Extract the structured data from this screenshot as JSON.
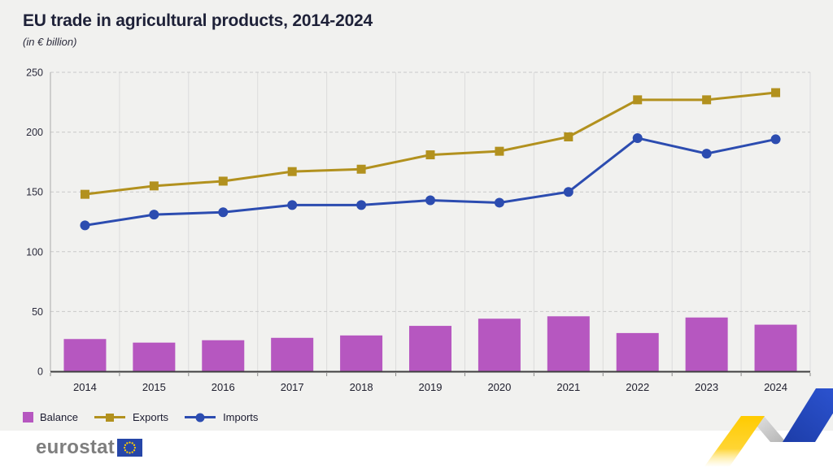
{
  "header": {
    "title": "EU trade in agricultural products, 2014-2024",
    "subtitle": "(in € billion)"
  },
  "legend": {
    "items": [
      {
        "label": "Balance",
        "swatch": "bar-square",
        "color": "#b657c0"
      },
      {
        "label": "Exports",
        "swatch": "line-square",
        "color": "#b2911e"
      },
      {
        "label": "Imports",
        "swatch": "line-circle",
        "color": "#2c4cb0"
      }
    ]
  },
  "footer": {
    "logo_text": "eurostat"
  },
  "colors": {
    "background": "#f1f1ef",
    "footer_background": "#ffffff",
    "balance_bar": "#b657c0",
    "exports_line": "#b2911e",
    "imports_line": "#2c4cb0",
    "axis_line": "#3f3f3f",
    "gridline": "#c9c9c9",
    "title_text": "#1e2138",
    "eu_flag_blue": "#2646a8",
    "eu_flag_stars": "#ffcc00",
    "ribbon_yellow": "#ffcc00",
    "ribbon_blue": "#2450c8",
    "ribbon_silver": "#c8c8c8"
  },
  "chart_data": {
    "type": "combo (bar + line)",
    "title": "EU trade in agricultural products, 2014-2024",
    "subtitle": "(in € billion)",
    "xlabel": "",
    "ylabel": "€ billion",
    "categories": [
      "2014",
      "2015",
      "2016",
      "2017",
      "2018",
      "2019",
      "2020",
      "2021",
      "2022",
      "2023",
      "2024"
    ],
    "bar_series": {
      "name": "Balance",
      "color": "#b657c0",
      "values": [
        27,
        24,
        26,
        28,
        30,
        38,
        44,
        46,
        32,
        45,
        39
      ]
    },
    "line_series": [
      {
        "name": "Exports",
        "color": "#b2911e",
        "marker": "square",
        "values": [
          148,
          155,
          159,
          167,
          169,
          181,
          184,
          196,
          227,
          227,
          233
        ]
      },
      {
        "name": "Imports",
        "color": "#2c4cb0",
        "marker": "circle",
        "values": [
          122,
          131,
          133,
          139,
          139,
          143,
          141,
          150,
          195,
          182,
          194
        ]
      }
    ],
    "ylim": [
      0,
      250
    ],
    "yticks": [
      0,
      50,
      100,
      150,
      200,
      250
    ],
    "grid": "horizontal dashed gridlines, vertical solid band separators",
    "legend_position": "bottom-left"
  }
}
